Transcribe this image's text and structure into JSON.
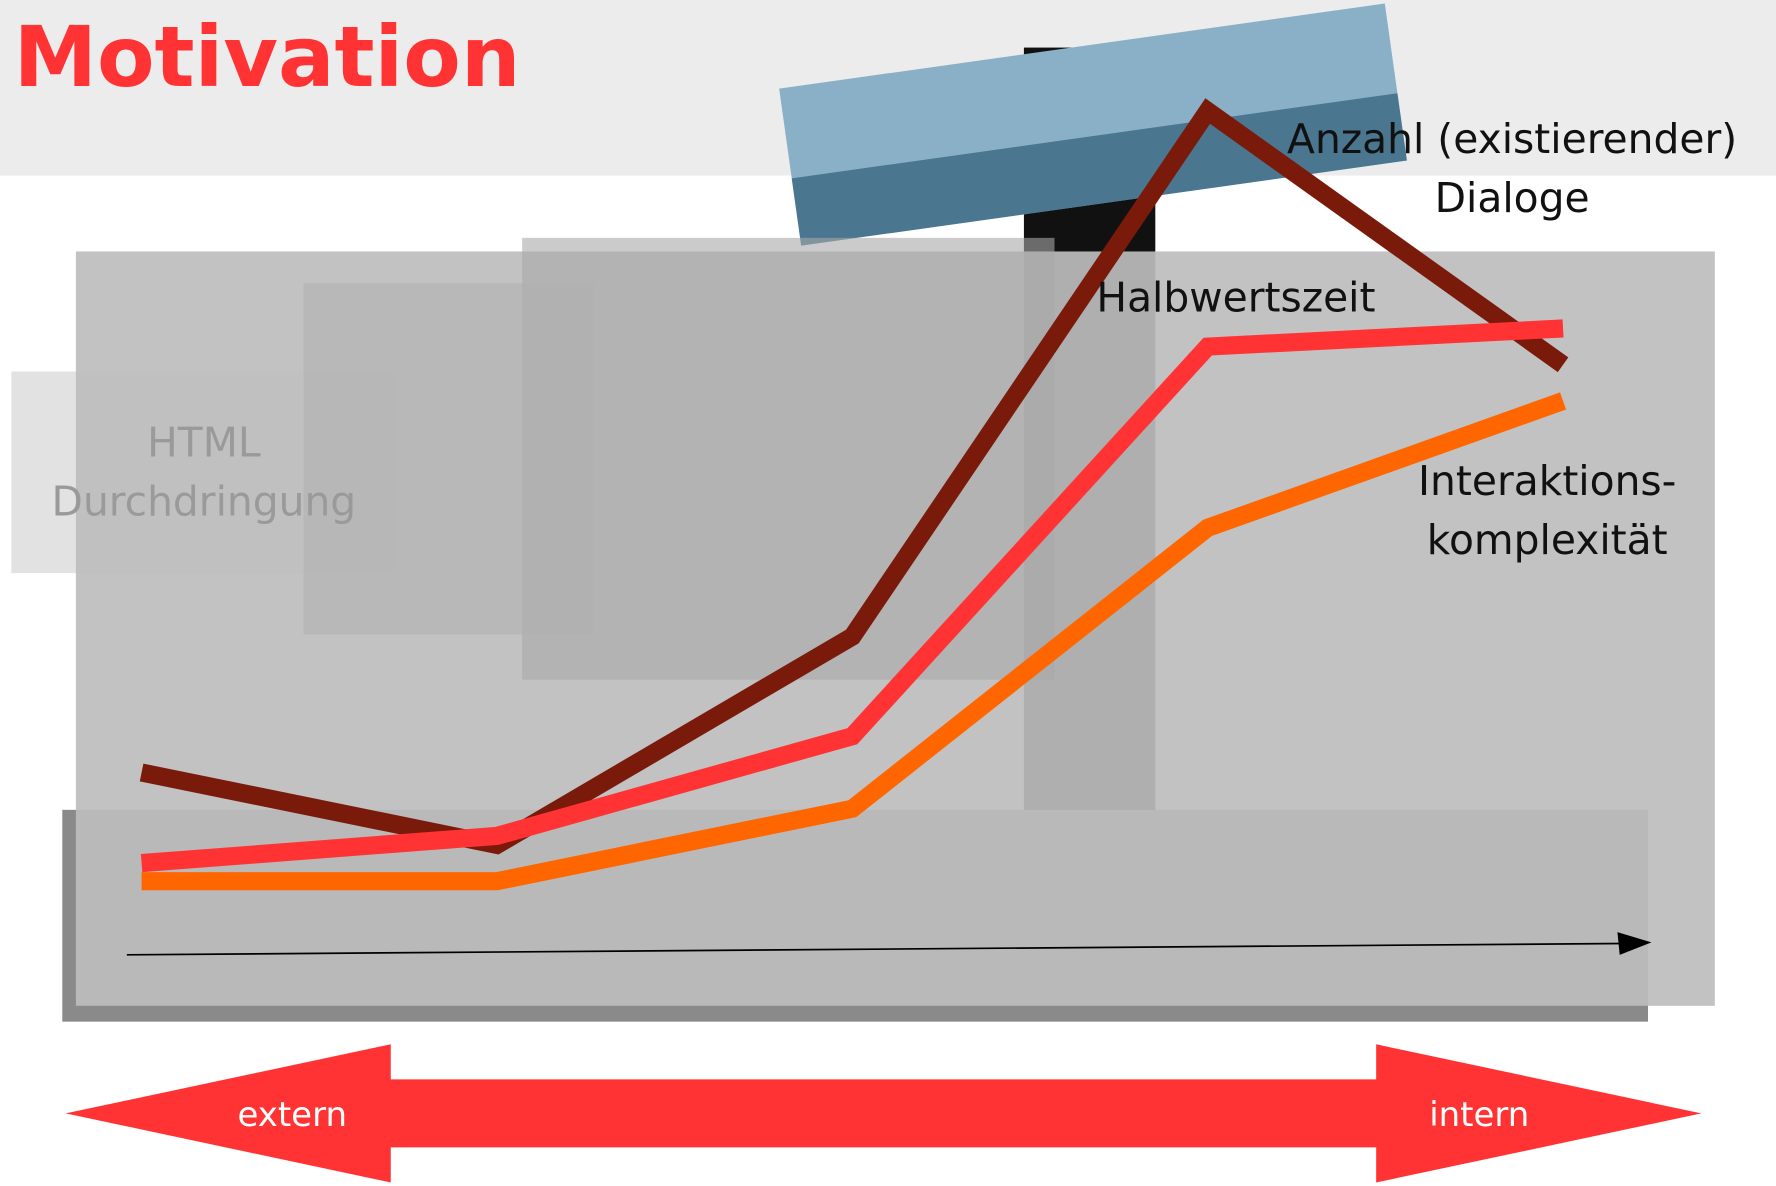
{
  "header": {
    "title": "Motivation"
  },
  "chart_data": {
    "type": "line",
    "categories": [
      null,
      null,
      null,
      null,
      null
    ],
    "ylim": [
      0,
      100
    ],
    "series": [
      {
        "name": "Anzahl (existierender) Dialoge",
        "color": "#7a1a0a",
        "values": [
          26,
          18,
          41,
          99,
          71
        ]
      },
      {
        "name": "Halbwertszeit",
        "color": "#ff3333",
        "values": [
          16,
          19,
          30,
          73,
          75
        ]
      },
      {
        "name": "Interaktions-komplexität",
        "color": "#ff6600",
        "values": [
          14,
          14,
          22,
          53,
          67
        ]
      }
    ]
  },
  "background_label": "HTML Durchdringung",
  "range": {
    "left": "extern",
    "right": "intern"
  }
}
